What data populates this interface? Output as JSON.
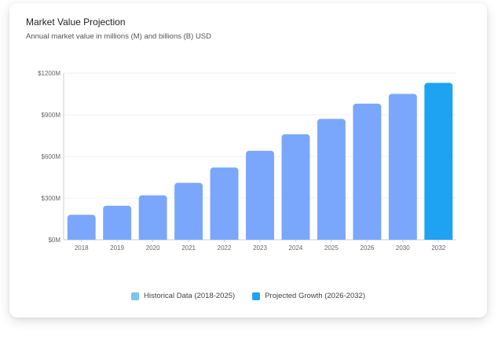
{
  "header": {
    "title": "Market Value Projection",
    "subtitle": "Annual market value in millions (M) and billions (B) USD"
  },
  "colors": {
    "historical_swatch": "#7cc4f2",
    "projected": "#1ea3f3",
    "bar_main": "#7aa7fb",
    "axis": "#cccccc",
    "grid": "#f1f1f1",
    "tick_text": "#666666"
  },
  "legend": [
    {
      "label": "Historical Data (2018-2025)",
      "color_key": "historical_swatch"
    },
    {
      "label": "Projected Growth (2026-2032)",
      "color_key": "projected"
    }
  ],
  "chart_data": {
    "type": "bar",
    "title": "Market Value Projection",
    "subtitle": "Annual market value in millions (M) and billions (B) USD",
    "xlabel": "",
    "ylabel": "",
    "categories": [
      "2018",
      "2019",
      "2020",
      "2021",
      "2022",
      "2023",
      "2024",
      "2025",
      "2026",
      "2030",
      "2032"
    ],
    "values": [
      180,
      245,
      320,
      410,
      520,
      640,
      760,
      870,
      980,
      1050,
      1130
    ],
    "highlight_index": 10,
    "ylim": [
      0,
      1200
    ],
    "yticks": [
      0,
      300,
      600,
      900,
      1200
    ],
    "ytick_labels": [
      "$0M",
      "$300M",
      "$600M",
      "$900M",
      "$1200M"
    ],
    "grid": true,
    "legend_position": "bottom-center"
  }
}
